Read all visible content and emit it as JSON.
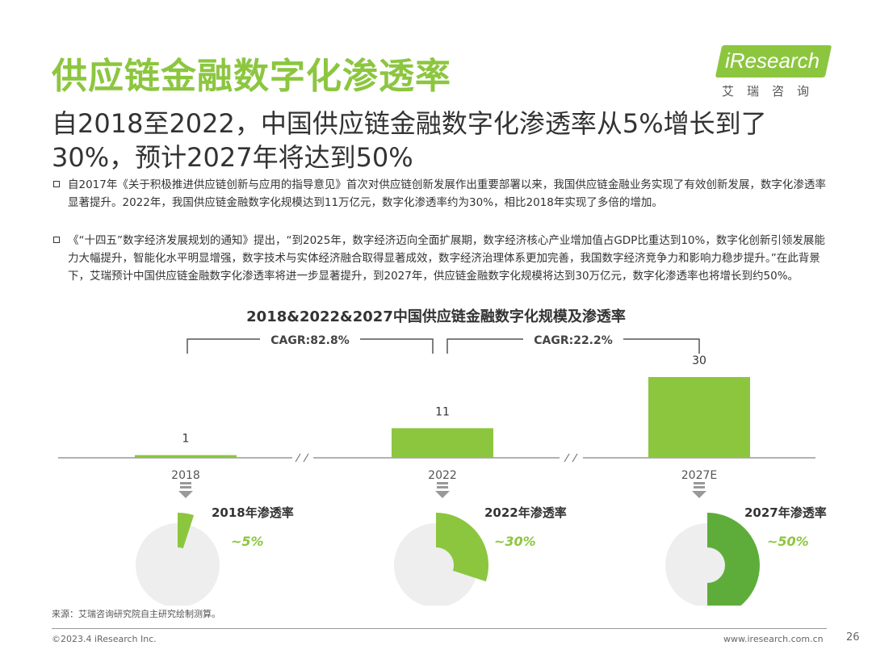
{
  "header": {
    "title": "供应链金融数字化渗透率",
    "subtitle": "自2018至2022，中国供应链金融数字化渗透率从5%增长到了30%，预计2027年将达到50%"
  },
  "logo": {
    "brand": "iResearch",
    "cn": "艾瑞咨询"
  },
  "bullets": [
    "自2017年《关于积极推进供应链创新与应用的指导意见》首次对供应链创新发展作出重要部署以来，我国供应链金融业务实现了有效创新发展，数字化渗透率显著提升。2022年，我国供应链金融数字化规模达到11万亿元，数字化渗透率约为30%，相比2018年实现了多倍的增加。",
    "《“十四五”数字经济发展规划的通知》提出，“到2025年，数字经济迈向全面扩展期，数字经济核心产业增加值占GDP比重达到10%，数字化创新引领发展能力大幅提升，智能化水平明显增强，数字技术与实体经济融合取得显著成效，数字经济治理体系更加完善，我国数字经济竞争力和影响力稳步提升。”在此背景下，艾瑞预计中国供应链金融数字化渗透率将进一步显著提升，到2027年，供应链金融数字化规模将达到30万亿元，数字化渗透率也将增长到约50%。"
  ],
  "chart_data": {
    "type": "bar",
    "title": "2018&2022&2027中国供应链金融数字化规模及渗透率",
    "categories": [
      "2018",
      "2022",
      "2027E"
    ],
    "values": [
      1,
      11,
      30
    ],
    "ylim": [
      0,
      30
    ],
    "annotations": [
      {
        "label": "CAGR:82.8%",
        "from": "2018",
        "to": "2022"
      },
      {
        "label": "CAGR:22.2%",
        "from": "2022",
        "to": "2027E"
      }
    ],
    "penetration": [
      {
        "label": "2018年渗透率",
        "value_label": "~5%",
        "fraction": 0.05
      },
      {
        "label": "2022年渗透率",
        "value_label": "~30%",
        "fraction": 0.3
      },
      {
        "label": "2027年渗透率",
        "value_label": "~50%",
        "fraction": 0.5
      }
    ],
    "colors": {
      "bar": "#8CC63F",
      "donut_light": "#8CC63F",
      "donut_dark": "#5EAD3B",
      "donut_bg": "#EEEEEE",
      "value_label": "#8CC63F"
    }
  },
  "footer": {
    "source": "来源：艾瑞咨询研究院自主研究绘制测算。",
    "copyright": "©2023.4 iResearch Inc.",
    "website": "www.iresearch.com.cn",
    "page": "26"
  }
}
